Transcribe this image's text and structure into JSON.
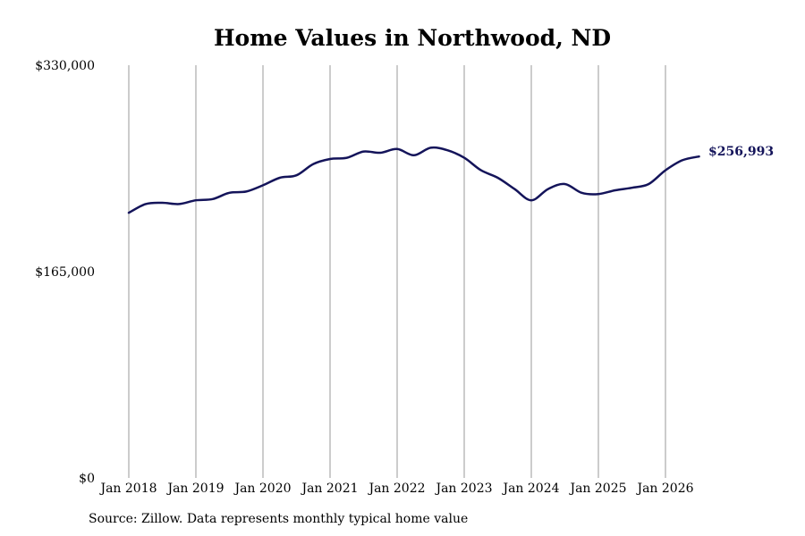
{
  "chart_data": {
    "type": "line",
    "title": "Home Values in Northwood, ND",
    "xlabel": "",
    "ylabel": "",
    "ylim": [
      0,
      330000
    ],
    "y_ticks": [
      {
        "value": 0,
        "label": "$0"
      },
      {
        "value": 165000,
        "label": "$165,000"
      },
      {
        "value": 330000,
        "label": "$330,000"
      }
    ],
    "x_ticks": [
      {
        "value": "2018-01",
        "label": "Jan 2018"
      },
      {
        "value": "2019-01",
        "label": "Jan 2019"
      },
      {
        "value": "2020-01",
        "label": "Jan 2020"
      },
      {
        "value": "2021-01",
        "label": "Jan 2021"
      },
      {
        "value": "2022-01",
        "label": "Jan 2022"
      },
      {
        "value": "2023-01",
        "label": "Jan 2023"
      },
      {
        "value": "2024-01",
        "label": "Jan 2024"
      },
      {
        "value": "2025-01",
        "label": "Jan 2025"
      },
      {
        "value": "2026-01",
        "label": "Jan 2026"
      }
    ],
    "grid": "vertical",
    "line_color": "#14145a",
    "end_label": "$256,993",
    "series": [
      {
        "x": [
          "2018-01",
          "2018-04",
          "2018-07",
          "2018-10",
          "2019-01",
          "2019-04",
          "2019-07",
          "2019-10",
          "2020-01",
          "2020-04",
          "2020-07",
          "2020-10",
          "2021-01",
          "2021-04",
          "2021-07",
          "2021-10",
          "2022-01",
          "2022-04",
          "2022-07",
          "2022-10",
          "2023-01",
          "2023-04",
          "2023-07",
          "2023-10",
          "2024-01",
          "2024-04",
          "2024-07",
          "2024-10",
          "2025-01",
          "2025-04",
          "2025-07",
          "2025-10",
          "2026-01",
          "2026-04",
          "2026-07"
        ],
        "values": [
          212000,
          219000,
          220000,
          219000,
          222000,
          223000,
          228000,
          229000,
          234000,
          240000,
          242000,
          251000,
          255000,
          256000,
          261000,
          260000,
          263000,
          258000,
          264000,
          262000,
          256000,
          246000,
          240000,
          231000,
          222000,
          231000,
          235000,
          228000,
          227000,
          230000,
          232000,
          235000,
          246000,
          254000,
          256993
        ]
      }
    ]
  },
  "footer": {
    "source": "Source: Zillow. Data represents monthly typical home value"
  }
}
